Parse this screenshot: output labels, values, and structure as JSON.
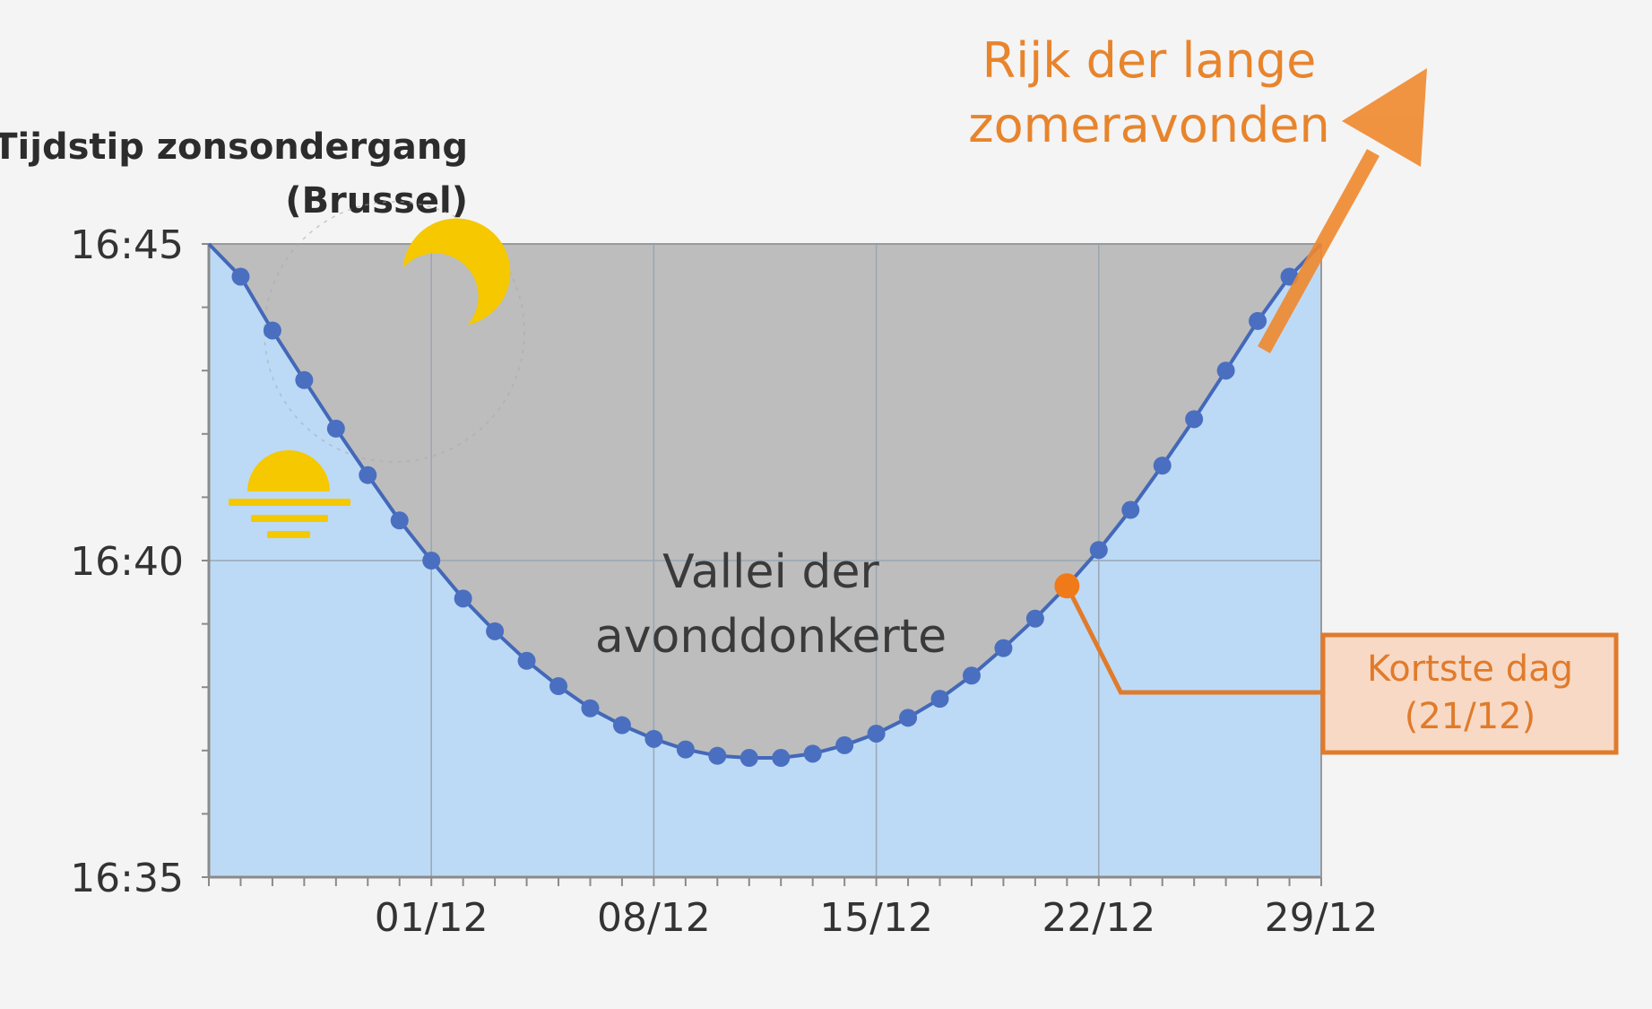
{
  "chart_data": {
    "type": "line",
    "ylabel_line1": "Tijdstip zonsondergang",
    "ylabel_line2": "(Brussel)",
    "y_axis": {
      "type": "time",
      "min": "16:35",
      "max": "16:45",
      "tick_labels": [
        "16:45",
        "16:40",
        "16:35"
      ]
    },
    "x_axis": {
      "type": "date",
      "min": "24/11",
      "max": "29/12",
      "tick_labels": [
        "01/12",
        "08/12",
        "15/12",
        "22/12",
        "29/12"
      ]
    },
    "series": [
      {
        "x": [
          "24/11",
          "25/11",
          "26/11",
          "27/11",
          "28/11",
          "29/11",
          "30/11",
          "01/12",
          "02/12",
          "03/12",
          "04/12",
          "05/12",
          "06/12",
          "07/12",
          "08/12",
          "09/12",
          "10/12",
          "11/12",
          "12/12",
          "13/12",
          "14/12",
          "15/12",
          "16/12",
          "17/12",
          "18/12",
          "19/12",
          "20/12",
          "21/12",
          "22/12",
          "23/12",
          "24/12",
          "25/12",
          "26/12",
          "27/12",
          "28/12",
          "29/12"
        ],
        "y": [
          "16:45:00",
          "16:44:29",
          "16:43:38",
          "16:42:51",
          "16:42:05",
          "16:41:21",
          "16:40:38",
          "16:40:00",
          "16:39:24",
          "16:38:53",
          "16:38:25",
          "16:38:01",
          "16:37:40",
          "16:37:24",
          "16:37:11",
          "16:37:01",
          "16:36:55",
          "16:36:53",
          "16:36:53",
          "16:36:57",
          "16:37:05",
          "16:37:16",
          "16:37:31",
          "16:37:49",
          "16:38:11",
          "16:38:37",
          "16:39:05",
          "16:39:36",
          "16:40:10",
          "16:40:48",
          "16:41:30",
          "16:42:14",
          "16:43:00",
          "16:43:47",
          "16:44:29",
          "16:45:00"
        ]
      }
    ],
    "highlight": {
      "date": "21/12",
      "label_line1": "Kortste dag",
      "label_line2": "(21/12)",
      "color": "#f07a1a"
    },
    "annotations": {
      "valley_line1": "Vallei der",
      "valley_line2": "avonddonkerte",
      "summer_line1": "Rijk der lange",
      "summer_line2": "zomeravonden"
    },
    "grid": true,
    "colors": {
      "line": "#4468b8",
      "point": "#4a6fc0",
      "below_fill": "#bcdaf6",
      "above_fill": "#bdbdbd",
      "accent": "#e8842c",
      "sun_moon": "#f5c800"
    },
    "icons": [
      "sun-icon",
      "moon-icon"
    ]
  }
}
